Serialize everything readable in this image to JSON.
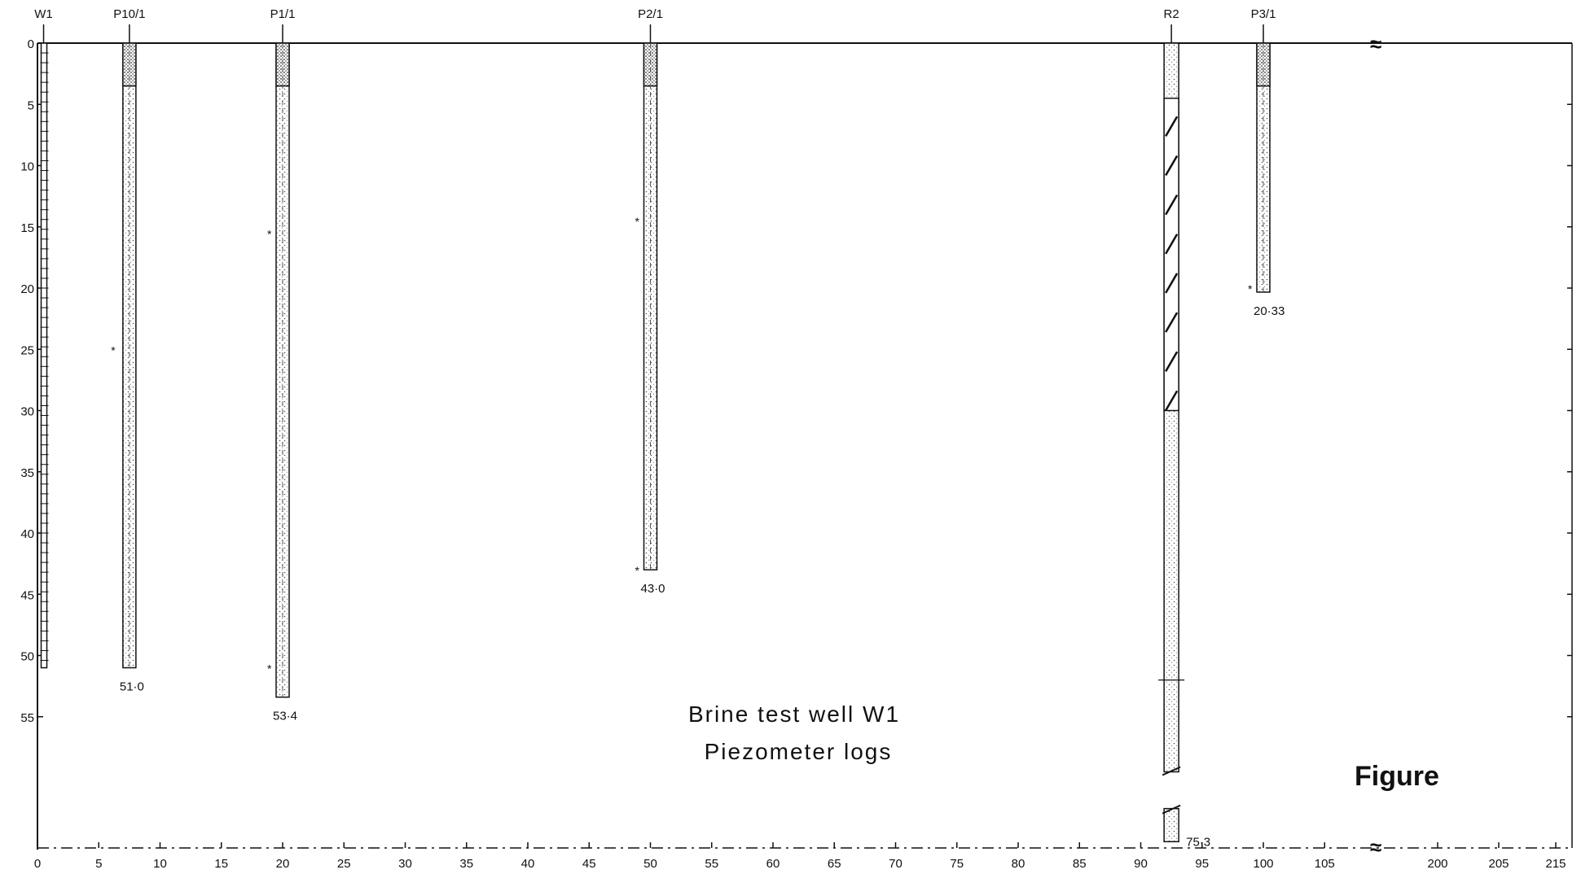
{
  "title": {
    "line1": "Brine  test  well   W1",
    "line2": "Piezometer  logs",
    "corner_label": "Figure"
  },
  "axes": {
    "x_ticks": [
      "0",
      "5",
      "10",
      "15",
      "20",
      "25",
      "30",
      "35",
      "40",
      "45",
      "50",
      "55",
      "60",
      "65",
      "70",
      "75",
      "80",
      "85",
      "90",
      "95",
      "100",
      "105",
      "200",
      "205",
      "215"
    ],
    "y_ticks": [
      "0",
      "5",
      "10",
      "15",
      "20",
      "25",
      "30",
      "35",
      "40",
      "45",
      "50",
      "55"
    ],
    "x_break_marker": "≈"
  },
  "wells": [
    {
      "label": "W1",
      "x": 0.5,
      "depth": 51,
      "depth_label": "",
      "type": "test-well"
    },
    {
      "label": "P10/1",
      "x": 7.5,
      "depth": 51.0,
      "depth_label": "51·0",
      "water_level": 25,
      "type": "piezometer"
    },
    {
      "label": "P1/1",
      "x": 20,
      "depth": 53.4,
      "depth_label": "53·4",
      "water_level": 15.5,
      "water_level_2": 51,
      "type": "piezometer"
    },
    {
      "label": "P2/1",
      "x": 50,
      "depth": 43.0,
      "depth_label": "43·0",
      "water_level": 14.5,
      "water_level_2": 43,
      "type": "piezometer"
    },
    {
      "label": "R2",
      "x": 92.5,
      "depth": 75.3,
      "depth_label": "75·3",
      "type": "borehole"
    },
    {
      "label": "P3/1",
      "x": 100,
      "depth": 20.33,
      "depth_label": "20·33",
      "water_level": 20,
      "type": "piezometer"
    }
  ]
}
